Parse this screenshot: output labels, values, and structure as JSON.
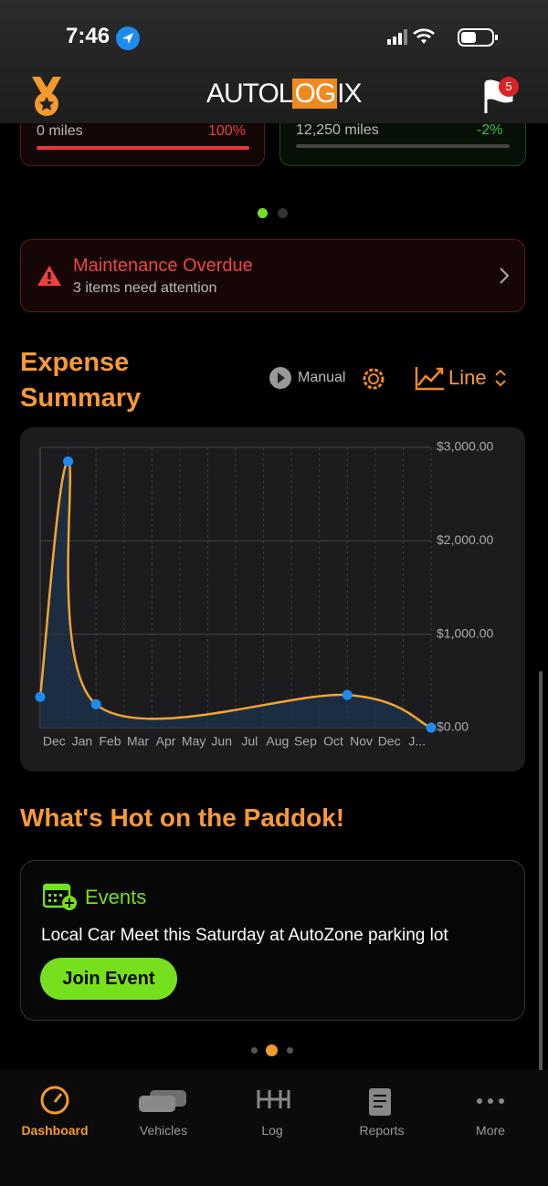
{
  "status": {
    "time": "7:46"
  },
  "header": {
    "logo": [
      "AUTOL",
      "OG",
      "IX"
    ],
    "badge": "5"
  },
  "stats": [
    {
      "miles": "0 miles",
      "percent": "100%"
    },
    {
      "miles": "12,250 miles",
      "percent": "-2%"
    }
  ],
  "alert": {
    "title": "Maintenance Overdue",
    "subtitle": "3 items need attention"
  },
  "expense": {
    "title": [
      "Expense",
      "Summary"
    ],
    "mode": "Manual",
    "chart_type": "Line"
  },
  "chart_data": {
    "type": "line",
    "categories": [
      "Dec",
      "Jan",
      "Feb",
      "Mar",
      "Apr",
      "May",
      "Jun",
      "Jul",
      "Aug",
      "Sep",
      "Oct",
      "Nov",
      "Dec",
      "J..."
    ],
    "x": [
      0,
      1,
      2,
      11,
      14
    ],
    "values": [
      330,
      2850,
      250,
      350,
      0
    ],
    "xlim": [
      0,
      14
    ],
    "ylim": [
      0,
      3000
    ],
    "yticks": [
      {
        "value": 0,
        "label": "$0.00"
      },
      {
        "value": 1000,
        "label": "$1,000.00"
      },
      {
        "value": 2000,
        "label": "$2,000.00"
      },
      {
        "value": 3000,
        "label": "$3,000.00"
      }
    ],
    "grid": true,
    "color": "#f2a531",
    "marker_color": "#1e8bf0"
  },
  "hot": {
    "title": "What's Hot on the Paddok!",
    "card_title": "Events",
    "text": "Local Car Meet this Saturday at AutoZone parking lot",
    "button": "Join Event"
  },
  "tabs": [
    "Dashboard",
    "Vehicles",
    "Log",
    "Reports",
    "More"
  ]
}
